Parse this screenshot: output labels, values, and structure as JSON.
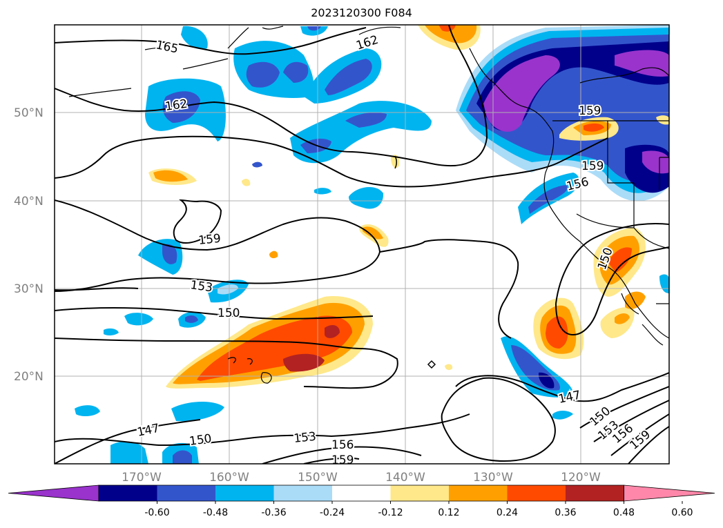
{
  "title": "2023120300 F084",
  "map": {
    "lat_labels": [
      "50°N",
      "40°N",
      "30°N",
      "20°N"
    ],
    "lon_labels": [
      "170°W",
      "160°W",
      "150°W",
      "140°W",
      "130°W",
      "120°W"
    ],
    "contour_labels": [
      "165",
      "162",
      "162",
      "159",
      "159",
      "159",
      "156",
      "153",
      "150",
      "150",
      "147",
      "147",
      "150",
      "153",
      "156",
      "159",
      "150",
      "153",
      "156",
      "159"
    ]
  },
  "colorbar": {
    "ticks": [
      "-0.60",
      "-0.48",
      "-0.36",
      "-0.24",
      "-0.12",
      "0.12",
      "0.24",
      "0.36",
      "0.48",
      "0.60"
    ],
    "colors": [
      "#9933cc",
      "#00008b",
      "#3355cc",
      "#00b4f0",
      "#aadcf8",
      "#ffffff",
      "#ffe88a",
      "#ffa000",
      "#ff4a00",
      "#b22222",
      "#ff88aa"
    ]
  }
}
